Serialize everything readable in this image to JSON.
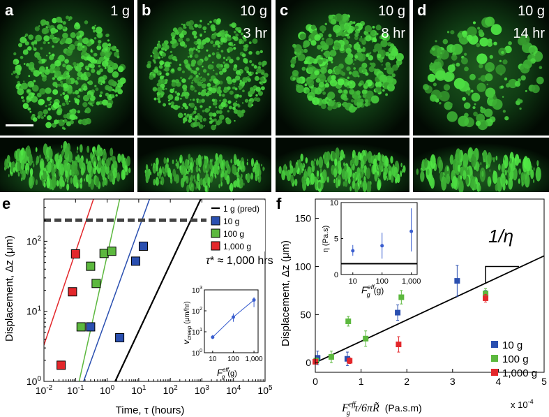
{
  "panels": [
    {
      "letter": "a",
      "text1": "1 g",
      "text2": ""
    },
    {
      "letter": "b",
      "text1": "10 g",
      "text2": "3 hr"
    },
    {
      "letter": "c",
      "text1": "10 g",
      "text2": "8 hr"
    },
    {
      "letter": "d",
      "text1": "10 g",
      "text2": "14 hr"
    }
  ],
  "colors": {
    "blue": "#2a4fb0",
    "green": "#5cb83e",
    "red": "#e3272b",
    "black": "#000000",
    "micro": "#38c838",
    "inset_blue": "#3a5ecf"
  },
  "chart_data": [
    {
      "panel": "e",
      "type": "scatter",
      "xscale": "log",
      "yscale": "log",
      "xlabel": "Time, τ (hours)",
      "ylabel": "Displacement, Δz (μm)",
      "xlim": [
        0.01,
        100000
      ],
      "ylim": [
        1,
        400
      ],
      "xticks": [
        {
          "e": "-2"
        },
        {
          "e": "-1"
        },
        {
          "e": "0"
        },
        {
          "e": "1"
        },
        {
          "e": "2"
        },
        {
          "e": "3"
        },
        {
          "e": "4"
        },
        {
          "e": "5"
        }
      ],
      "yticks": [
        {
          "e": "0"
        },
        {
          "e": "1"
        },
        {
          "e": "2"
        }
      ],
      "annotation_italic": "τ",
      "annotation_rest": "* ≈ 1,000 hrs",
      "threshold": 200,
      "legend": [
        "1 g (pred)",
        "10 g",
        "100 g",
        "1,000 g"
      ],
      "series": [
        {
          "name": "10 g",
          "color": "blue",
          "x": [
            0.3,
            2.5,
            8,
            14
          ],
          "y": [
            6,
            4.2,
            52,
            85
          ]
        },
        {
          "name": "100 g",
          "color": "green",
          "x": [
            0.15,
            0.3,
            0.45,
            0.8,
            1.4
          ],
          "y": [
            6,
            44,
            25,
            67,
            72
          ]
        },
        {
          "name": "1,000 g",
          "color": "red",
          "x": [
            0.035,
            0.08,
            0.1
          ],
          "y": [
            1.7,
            19,
            66
          ]
        }
      ],
      "fit_lines": [
        {
          "color": "red",
          "x": [
            0.01,
            0.37
          ],
          "y": [
            3.3,
            400
          ]
        },
        {
          "color": "green",
          "x": [
            0.13,
            2.5
          ],
          "y": [
            1,
            400
          ]
        },
        {
          "color": "blue",
          "x": [
            0.18,
            22
          ],
          "y": [
            1,
            400
          ]
        },
        {
          "color": "black",
          "x": [
            1.8,
            920
          ],
          "y": [
            1,
            400
          ]
        }
      ],
      "inset": {
        "xlabel_main": "F",
        "xlabel_sup": "eff",
        "xlabel_sub": "g",
        "xlabel_unit": "(g)",
        "ylabel_main": "v",
        "ylabel_sub": "creep",
        "ylabel_unit": "(μm/hr)",
        "xticks": [
          "10",
          "100",
          "1,000"
        ],
        "yticks": [
          {
            "e": "0"
          },
          {
            "e": "1"
          },
          {
            "e": "2"
          },
          {
            "e": "3"
          }
        ],
        "x": [
          10,
          100,
          1000
        ],
        "y": [
          5.5,
          50,
          330
        ],
        "err_lo": [
          4.5,
          30,
          150
        ],
        "err_hi": [
          7,
          75,
          450
        ]
      }
    },
    {
      "panel": "f",
      "type": "scatter",
      "xlabel_main": "F",
      "xlabel_sup": "eff",
      "xlabel_sub": "g",
      "xlabel_rest": "τ/6πR̃",
      "xlabel_unit": "(Pa.s.m)",
      "ylabel": "Displacement, Δz (μm)",
      "xlim": [
        0,
        5
      ],
      "ylim": [
        -10,
        170
      ],
      "xticks": [
        "0",
        "1",
        "2",
        "3",
        "4",
        "5"
      ],
      "yticks": [
        "0",
        "50",
        "100",
        "150"
      ],
      "x_multiplier": "x 10",
      "x_multiplier_exp": "-4",
      "slope_label": "1/η",
      "fit": {
        "x": [
          0,
          5
        ],
        "y": [
          0,
          111
        ]
      },
      "legend": [
        "10 g",
        "100 g",
        "1,000 g"
      ],
      "series": [
        {
          "name": "10 g",
          "color": "blue",
          "x": [
            0.05,
            0.7,
            1.8,
            3.1,
            3.72
          ],
          "y": [
            5,
            4,
            52,
            85,
            70
          ],
          "err": [
            7,
            7,
            8,
            16,
            5
          ]
        },
        {
          "name": "100 g",
          "color": "green",
          "x": [
            0.02,
            0.35,
            0.72,
            1.1,
            1.88,
            3.72
          ],
          "y": [
            2,
            6,
            43,
            25,
            68,
            72
          ],
          "err": [
            3,
            6,
            5,
            8,
            7,
            5
          ]
        },
        {
          "name": "1,000 g",
          "color": "red",
          "x": [
            0.0,
            0.75,
            1.82,
            3.72
          ],
          "y": [
            1,
            2,
            19,
            67
          ],
          "err": [
            2,
            3,
            8,
            4
          ]
        }
      ],
      "inset": {
        "ylabel": "η (Pa.s)",
        "xlabel_main": "F",
        "xlabel_sup": "eff",
        "xlabel_sub": "g",
        "xlabel_unit": "(g)",
        "xticks": [
          "10",
          "100",
          "1,000"
        ],
        "yticks": [
          "0",
          "5",
          "10"
        ],
        "x": [
          10,
          100,
          1000
        ],
        "y": [
          3.3,
          4,
          6
        ],
        "err_lo": [
          2.6,
          2.2,
          3.2
        ],
        "err_hi": [
          4.1,
          5.8,
          9.2
        ],
        "baseline": 1.5
      }
    }
  ]
}
